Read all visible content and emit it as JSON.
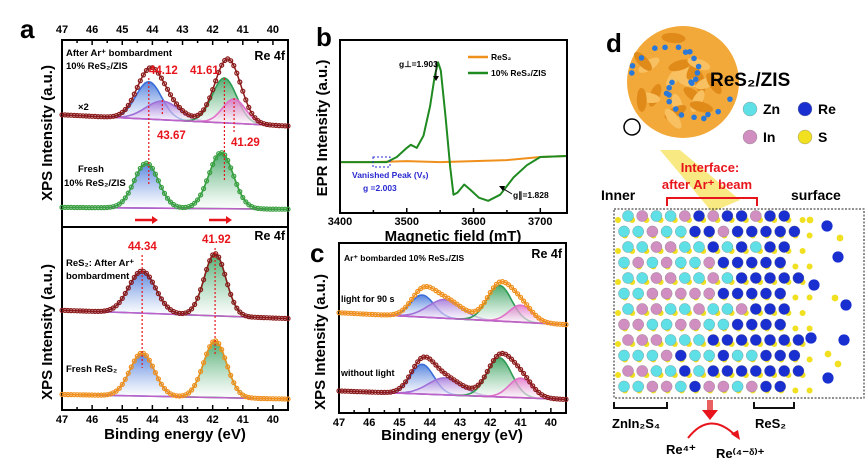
{
  "panels": {
    "a": {
      "letter": "a"
    },
    "b": {
      "letter": "b"
    },
    "c": {
      "letter": "c"
    },
    "d": {
      "letter": "d",
      "title": "ReS₂/ZIS",
      "legend": [
        {
          "symbol": "Zn",
          "color": "#5fe0e6"
        },
        {
          "symbol": "Re",
          "color": "#1a2fd0"
        },
        {
          "symbol": "In",
          "color": "#d08fc0"
        },
        {
          "symbol": "S",
          "color": "#f0e020"
        }
      ],
      "interface_label": [
        "Interface:",
        "after Ar⁺ beam"
      ],
      "inner_label": "Inner",
      "surface_label": "surface",
      "left_bracket_label": "ZnIn₂S₄",
      "right_bracket_label": "ReS₂",
      "reaction_from": "Re⁴⁺",
      "reaction_to": "Re⁽⁴⁻ᵟ⁾⁺",
      "accent_color": "#e8141b"
    }
  },
  "chart_data": [
    {
      "panel": "a",
      "type": "line",
      "xlabel": "Binding energy (eV)",
      "ylabel": "XPS Intensity (a.u.)",
      "xlim": [
        47,
        39.5
      ],
      "xticks": [
        47,
        46,
        45,
        44,
        43,
        42,
        41,
        40
      ],
      "x_reversed": true,
      "grid": false,
      "subplots": [
        {
          "tag": "Re 4f",
          "ylim": [
            0,
            10
          ],
          "spectra": [
            {
              "label_lines": [
                "After Ar⁺ bombardment",
                "10% ReS₂/ZIS"
              ],
              "scale_note": "×2",
              "baseline": [
                6.0,
                5.4
              ],
              "envelope_color": "#8b1a1a",
              "components": [
                {
                  "center": 44.12,
                  "height": 2.0,
                  "fwhm": 1.0,
                  "color": "#3a6fd8"
                },
                {
                  "center": 43.67,
                  "height": 1.0,
                  "fwhm": 1.3,
                  "color": "#a070d8"
                },
                {
                  "center": 41.61,
                  "height": 2.4,
                  "fwhm": 0.95,
                  "color": "#2e9c55"
                },
                {
                  "center": 41.29,
                  "height": 1.3,
                  "fwhm": 0.9,
                  "color": "#e070c8"
                }
              ]
            },
            {
              "label_lines": [
                "Fresh",
                "10% ReS₂/ZIS"
              ],
              "baseline": [
                1.05,
                0.95
              ],
              "envelope_color": "#3aa040",
              "components": [
                {
                  "center": 44.2,
                  "height": 2.4,
                  "fwhm": 0.95,
                  "color": "#3a6fd8"
                },
                {
                  "center": 41.72,
                  "height": 3.0,
                  "fwhm": 0.95,
                  "color": "#2e9c55"
                }
              ]
            }
          ],
          "annotations": [
            "44.12",
            "41.61",
            "43.67",
            "41.29"
          ]
        },
        {
          "tag": "Re 4f",
          "ylim": [
            0,
            10
          ],
          "spectra": [
            {
              "label_lines": [
                "ReS₂: After Ar⁺",
                "bombardment"
              ],
              "baseline": [
                5.45,
                5.0
              ],
              "envelope_color": "#8b1a1a",
              "components": [
                {
                  "center": 44.34,
                  "height": 2.3,
                  "fwhm": 1.05,
                  "color": "#3a6fd8"
                },
                {
                  "center": 41.92,
                  "height": 3.4,
                  "fwhm": 0.85,
                  "color": "#2e9c55"
                }
              ]
            },
            {
              "label_lines": [
                "Fresh ReS₂"
              ],
              "baseline": [
                0.85,
                0.6
              ],
              "envelope_color": "#f0901c",
              "components": [
                {
                  "center": 44.34,
                  "height": 2.35,
                  "fwhm": 0.95,
                  "color": "#3a6fd8"
                },
                {
                  "center": 41.92,
                  "height": 3.1,
                  "fwhm": 0.9,
                  "color": "#2e9c55"
                }
              ]
            }
          ],
          "annotations": [
            "44.34",
            "41.92"
          ]
        }
      ]
    },
    {
      "panel": "b",
      "type": "line",
      "xlabel": "Magnetic field (mT)",
      "ylabel": "EPR Intensity (a.u.)",
      "xlim": [
        3400,
        3740
      ],
      "xticks": [
        3400,
        3500,
        3600,
        3700
      ],
      "ylim": [
        -0.5,
        1.2
      ],
      "legend_position": "top-right",
      "series": [
        {
          "name": "ReS₂",
          "color": "#f0901c",
          "x": [
            3400,
            3450,
            3500,
            3550,
            3600,
            3650,
            3700,
            3740
          ],
          "y": [
            0.0,
            0.0,
            0.01,
            0.0,
            0.01,
            0.02,
            0.05,
            0.06
          ]
        },
        {
          "name": "10% ReS₂/ZIS",
          "color": "#1f8a1f",
          "x": [
            3400,
            3470,
            3485,
            3500,
            3506,
            3515,
            3525,
            3535,
            3542,
            3547,
            3551,
            3558,
            3565,
            3570,
            3576,
            3586,
            3595,
            3608,
            3622,
            3640,
            3660,
            3680,
            3700,
            3740
          ],
          "y": [
            0.0,
            0.0,
            0.05,
            0.14,
            0.17,
            0.14,
            0.26,
            0.55,
            0.85,
            0.98,
            0.9,
            0.45,
            -0.05,
            -0.32,
            -0.3,
            -0.22,
            -0.27,
            -0.35,
            -0.38,
            -0.32,
            -0.15,
            -0.03,
            0.05,
            0.06
          ]
        }
      ],
      "annotations": {
        "g_perp": "g⊥=1.903",
        "g_par": "g∥=1.828",
        "vanished": "Vanished Peak (Vₛ)",
        "vanished_g": "g =2.003"
      }
    },
    {
      "panel": "c",
      "type": "line",
      "title": "Ar⁺ bombarded 10% ReS₂/ZIS",
      "tag": "Re 4f",
      "xlabel": "Binding energy (eV)",
      "ylabel": "XPS Intensity (a.u.)",
      "xlim": [
        47,
        39.5
      ],
      "xticks": [
        47,
        46,
        45,
        44,
        43,
        42,
        41,
        40
      ],
      "ylim": [
        0,
        10
      ],
      "spectra": [
        {
          "label_lines": [
            "light for 90 s"
          ],
          "baseline": [
            5.9,
            5.2
          ],
          "envelope_color": "#f0901c",
          "components": [
            {
              "center": 44.25,
              "height": 1.3,
              "fwhm": 0.9,
              "color": "#3a6fd8"
            },
            {
              "center": 43.5,
              "height": 1.1,
              "fwhm": 1.3,
              "color": "#a070d8"
            },
            {
              "center": 41.7,
              "height": 2.1,
              "fwhm": 0.95,
              "color": "#2e9c55"
            },
            {
              "center": 41.0,
              "height": 1.0,
              "fwhm": 0.9,
              "color": "#e070c8"
            }
          ]
        },
        {
          "label_lines": [
            "without light"
          ],
          "baseline": [
            1.3,
            0.8
          ],
          "envelope_color": "#8b1a1a",
          "components": [
            {
              "center": 44.25,
              "height": 1.75,
              "fwhm": 0.9,
              "color": "#3a6fd8"
            },
            {
              "center": 43.5,
              "height": 1.0,
              "fwhm": 1.3,
              "color": "#a070d8"
            },
            {
              "center": 41.7,
              "height": 2.3,
              "fwhm": 0.95,
              "color": "#2e9c55"
            },
            {
              "center": 41.0,
              "height": 1.15,
              "fwhm": 0.9,
              "color": "#e070c8"
            }
          ]
        }
      ]
    }
  ]
}
